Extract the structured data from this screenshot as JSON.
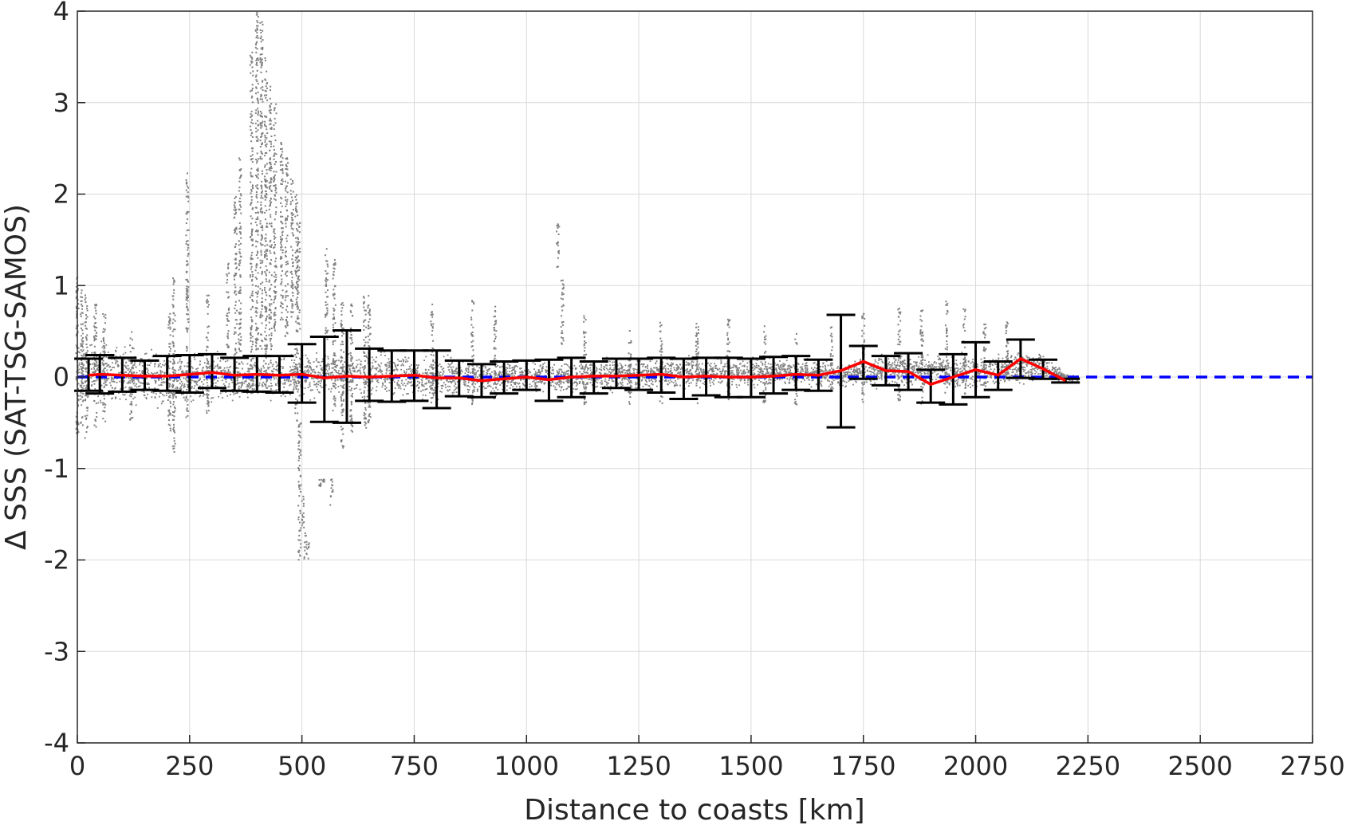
{
  "chart_data": {
    "type": "scatter",
    "title": "",
    "xlabel": "Distance to coasts [km]",
    "ylabel": "Δ SSS (SAT-TSG-SAMOS)",
    "xlim": [
      0,
      2750
    ],
    "ylim": [
      -4,
      4
    ],
    "xticks": [
      0,
      250,
      500,
      750,
      1000,
      1250,
      1500,
      1750,
      2000,
      2250,
      2500,
      2750
    ],
    "yticks": [
      -4,
      -3,
      -2,
      -1,
      0,
      1,
      2,
      3,
      4
    ],
    "grid": true,
    "colors": {
      "scatter": "#808080",
      "mean": "#ff0000",
      "errorbar": "#000000",
      "zero_line": "#0000ff"
    },
    "bin_stats": {
      "x": [
        25,
        50,
        100,
        150,
        200,
        250,
        300,
        350,
        400,
        450,
        500,
        550,
        600,
        650,
        700,
        750,
        800,
        850,
        900,
        950,
        1000,
        1050,
        1100,
        1150,
        1200,
        1250,
        1300,
        1350,
        1400,
        1450,
        1500,
        1550,
        1600,
        1650,
        1700,
        1750,
        1800,
        1850,
        1900,
        1950,
        2000,
        2050,
        2100,
        2150,
        2200
      ],
      "mean": [
        0.02,
        0.03,
        0.02,
        0.01,
        0.01,
        0.03,
        0.05,
        0.02,
        0.03,
        0.02,
        0.03,
        -0.01,
        0.01,
        0.0,
        0.01,
        0.02,
        -0.01,
        -0.01,
        -0.04,
        -0.02,
        0.0,
        -0.03,
        0.0,
        0.01,
        0.01,
        0.02,
        0.03,
        0.0,
        0.01,
        0.0,
        0.0,
        0.01,
        0.03,
        0.02,
        0.07,
        0.17,
        0.07,
        0.06,
        -0.08,
        0.0,
        0.08,
        0.02,
        0.2,
        0.09,
        -0.04
      ],
      "lower": [
        -0.15,
        -0.18,
        -0.16,
        -0.14,
        -0.15,
        -0.17,
        -0.12,
        -0.15,
        -0.16,
        -0.17,
        -0.28,
        -0.49,
        -0.5,
        -0.26,
        -0.27,
        -0.26,
        -0.34,
        -0.21,
        -0.22,
        -0.18,
        -0.14,
        -0.26,
        -0.22,
        -0.18,
        -0.12,
        -0.14,
        -0.17,
        -0.24,
        -0.2,
        -0.22,
        -0.22,
        -0.18,
        -0.14,
        -0.15,
        -0.55,
        -0.02,
        -0.09,
        -0.14,
        -0.28,
        -0.3,
        -0.22,
        -0.14,
        -0.01,
        -0.02,
        -0.06
      ],
      "upper": [
        0.2,
        0.24,
        0.21,
        0.18,
        0.23,
        0.24,
        0.25,
        0.21,
        0.23,
        0.23,
        0.36,
        0.44,
        0.51,
        0.31,
        0.29,
        0.29,
        0.29,
        0.18,
        0.14,
        0.17,
        0.18,
        0.19,
        0.21,
        0.17,
        0.2,
        0.2,
        0.21,
        0.2,
        0.21,
        0.21,
        0.2,
        0.22,
        0.23,
        0.19,
        0.68,
        0.34,
        0.23,
        0.26,
        0.08,
        0.25,
        0.38,
        0.17,
        0.41,
        0.19,
        -0.02
      ]
    },
    "zero_line": {
      "y": 0,
      "x_range": [
        0,
        2750
      ]
    },
    "scatter": {
      "envelope": {
        "x": [
          0,
          50,
          100,
          200,
          300,
          400,
          480,
          520,
          600,
          650,
          700,
          750,
          800,
          850,
          900,
          950,
          1000,
          1100,
          1200,
          1300,
          1400,
          1500,
          1600,
          1700,
          1800,
          1900,
          2000,
          2100,
          2150,
          2200,
          2230
        ],
        "low": [
          -0.45,
          -0.4,
          -0.35,
          -0.4,
          -0.35,
          -0.3,
          -0.3,
          -0.3,
          -0.3,
          -0.3,
          -0.25,
          -0.3,
          -0.3,
          -0.25,
          -0.2,
          -0.2,
          -0.2,
          -0.2,
          -0.2,
          -0.15,
          -0.15,
          -0.15,
          -0.15,
          -0.15,
          -0.15,
          -0.15,
          -0.2,
          -0.1,
          -0.05,
          -0.05,
          -0.05
        ],
        "high": [
          0.6,
          0.45,
          0.4,
          0.35,
          0.3,
          0.3,
          0.3,
          0.35,
          0.35,
          0.35,
          0.3,
          0.3,
          0.3,
          0.25,
          0.2,
          0.2,
          0.2,
          0.2,
          0.25,
          0.25,
          0.25,
          0.25,
          0.25,
          0.2,
          0.3,
          0.3,
          0.3,
          0.3,
          0.3,
          0.05,
          0.02
        ]
      },
      "streaks": [
        [
          0,
          -0.7,
          1.1
        ],
        [
          10,
          -0.6,
          1.0
        ],
        [
          20,
          -0.7,
          0.9
        ],
        [
          40,
          -0.6,
          0.8
        ],
        [
          60,
          -0.5,
          0.7
        ],
        [
          120,
          -0.5,
          0.5
        ],
        [
          205,
          -0.6,
          0.7
        ],
        [
          215,
          -0.85,
          1.1
        ],
        [
          245,
          -0.5,
          2.25
        ],
        [
          290,
          -0.4,
          0.9
        ],
        [
          335,
          0.3,
          1.25
        ],
        [
          352,
          0.2,
          2.0
        ],
        [
          362,
          0.0,
          2.4
        ],
        [
          388,
          -0.2,
          3.6
        ],
        [
          400,
          0.0,
          4.0
        ],
        [
          410,
          0.2,
          3.9
        ],
        [
          420,
          -0.1,
          3.5
        ],
        [
          430,
          0.3,
          3.2
        ],
        [
          440,
          0.5,
          3.0
        ],
        [
          455,
          0.6,
          2.6
        ],
        [
          466,
          0.4,
          2.4
        ],
        [
          478,
          0.6,
          2.2
        ],
        [
          488,
          -0.5,
          2.0
        ],
        [
          493,
          0.5,
          1.7
        ],
        [
          495,
          -2.0,
          -0.5
        ],
        [
          502,
          -1.7,
          -1.3
        ],
        [
          508,
          -2.0,
          -1.7
        ],
        [
          513,
          -2.0,
          -1.8
        ],
        [
          541,
          -1.2,
          -1.1
        ],
        [
          548,
          -1.15,
          -1.1
        ],
        [
          555,
          0.4,
          1.45
        ],
        [
          566,
          -1.4,
          -1.1
        ],
        [
          572,
          -0.4,
          1.3
        ],
        [
          590,
          -0.8,
          0.9
        ],
        [
          610,
          -0.6,
          0.8
        ],
        [
          640,
          -0.6,
          0.9
        ],
        [
          650,
          -0.5,
          0.9
        ],
        [
          790,
          -0.3,
          0.8
        ],
        [
          880,
          -0.3,
          0.85
        ],
        [
          930,
          -0.25,
          0.85
        ],
        [
          1070,
          1.2,
          1.7
        ],
        [
          1080,
          0.3,
          1.1
        ],
        [
          1130,
          -0.3,
          0.7
        ],
        [
          1230,
          -0.3,
          0.55
        ],
        [
          1300,
          -0.3,
          0.6
        ],
        [
          1380,
          -0.3,
          0.65
        ],
        [
          1450,
          -0.3,
          0.7
        ],
        [
          1530,
          -0.3,
          0.6
        ],
        [
          1600,
          -0.3,
          0.5
        ],
        [
          1680,
          -0.25,
          0.55
        ],
        [
          1750,
          -0.3,
          0.7
        ],
        [
          1830,
          -0.3,
          0.8
        ],
        [
          1880,
          -0.3,
          0.8
        ],
        [
          1935,
          -0.2,
          0.85
        ],
        [
          1975,
          -0.2,
          0.75
        ],
        [
          2020,
          -0.1,
          0.6
        ],
        [
          2070,
          -0.05,
          0.65
        ]
      ]
    }
  }
}
